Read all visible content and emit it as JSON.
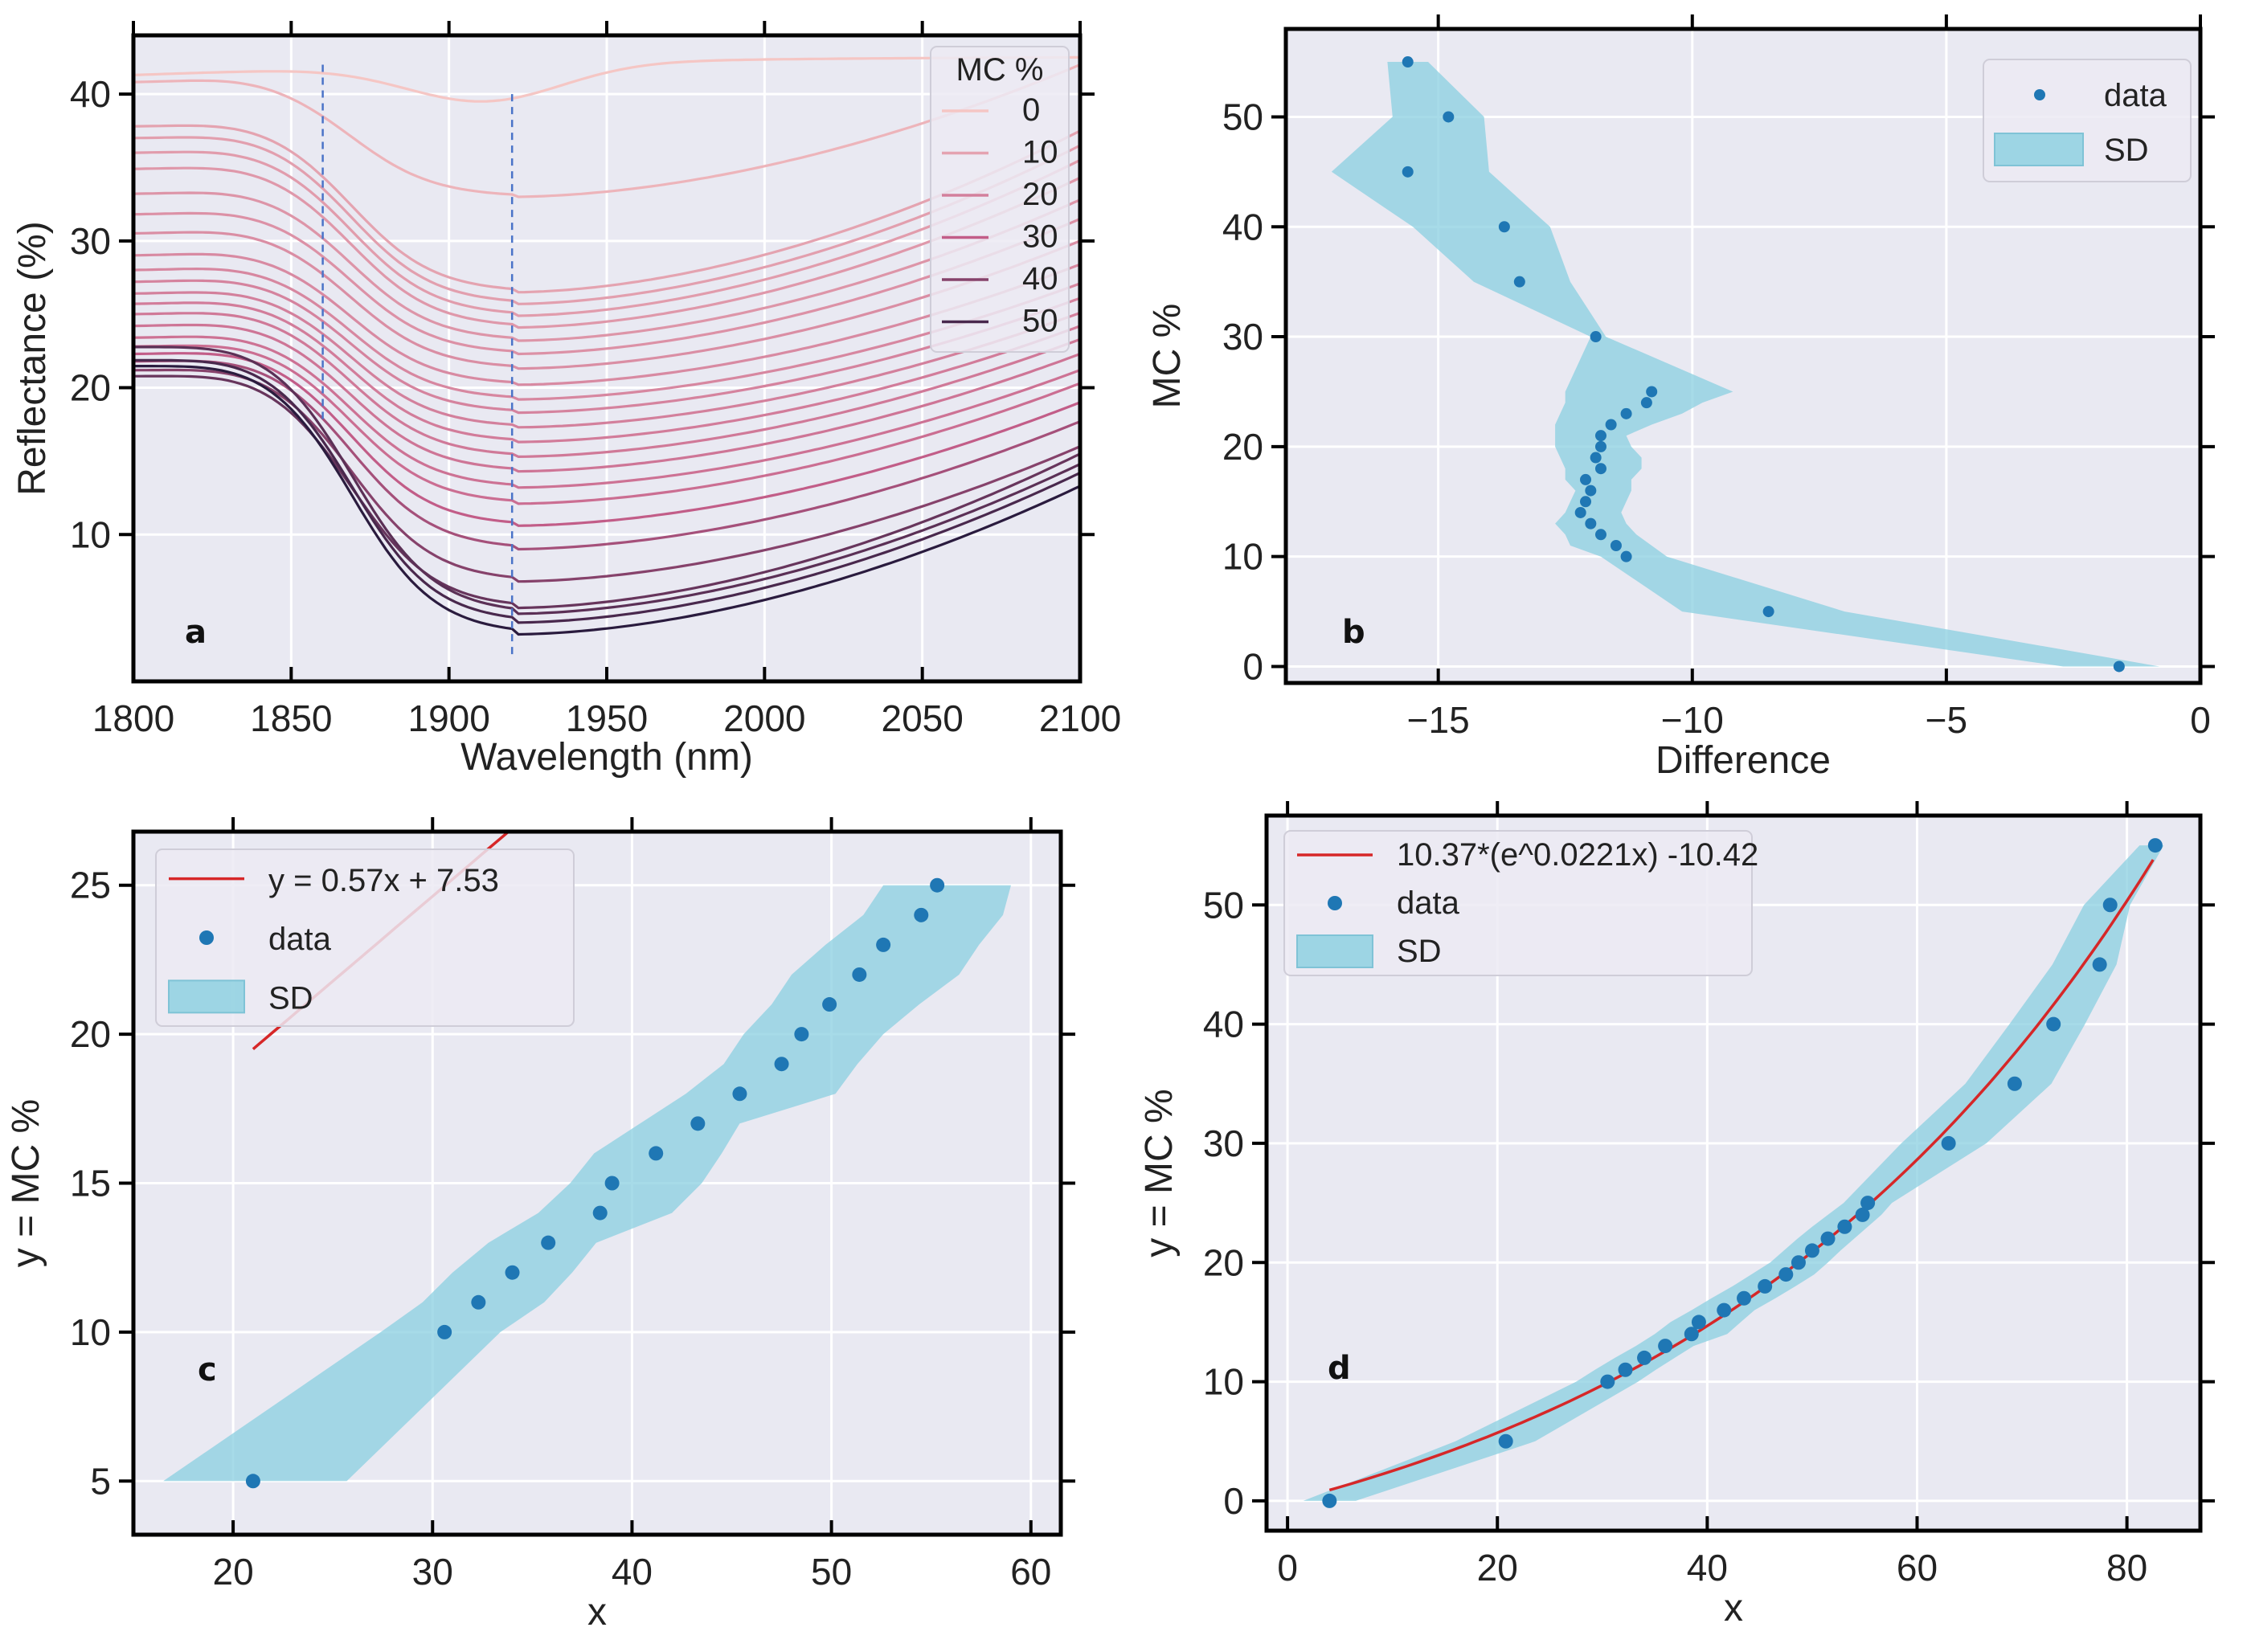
{
  "chart_data": [
    {
      "panel": "a",
      "type": "line",
      "xlabel": "Wavelength (nm)",
      "ylabel": "Reflectance (%)",
      "xlim": [
        1800,
        2100
      ],
      "ylim": [
        0,
        44
      ],
      "xticks": [
        1800,
        1850,
        1900,
        1950,
        2000,
        2050,
        2100
      ],
      "yticks": [
        10,
        20,
        30,
        40
      ],
      "grid": true,
      "legend": {
        "title": "MC %",
        "position": "top-right",
        "entries": [
          "0",
          "10",
          "20",
          "30",
          "40",
          "50"
        ]
      },
      "reference_lines_x": [
        1860,
        1920
      ],
      "colors": {
        "low_mc": "#f5c6c4",
        "high_mc": "#2a1b3e"
      },
      "series": [
        {
          "mc": 0,
          "r1800": 41.3,
          "r1920": 39.5,
          "r2100": 42.5
        },
        {
          "mc": 5,
          "r1800": 40.8,
          "r1920": 33.0,
          "r2100": 42.0
        },
        {
          "mc": 10,
          "r1800": 37.8,
          "r1920": 26.5,
          "r2100": 37.5
        },
        {
          "mc": 11,
          "r1800": 37.0,
          "r1920": 25.7,
          "r2100": 36.5
        },
        {
          "mc": 12,
          "r1800": 36.0,
          "r1920": 24.9,
          "r2100": 35.5
        },
        {
          "mc": 13,
          "r1800": 34.9,
          "r1920": 24.1,
          "r2100": 34.3
        },
        {
          "mc": 14,
          "r1800": 33.2,
          "r1920": 23.2,
          "r2100": 32.8
        },
        {
          "mc": 15,
          "r1800": 31.8,
          "r1920": 22.3,
          "r2100": 31.5
        },
        {
          "mc": 16,
          "r1800": 30.5,
          "r1920": 21.3,
          "r2100": 30.0
        },
        {
          "mc": 17,
          "r1800": 29.0,
          "r1920": 20.2,
          "r2100": 28.4
        },
        {
          "mc": 18,
          "r1800": 28.0,
          "r1920": 19.2,
          "r2100": 27.1
        },
        {
          "mc": 19,
          "r1800": 27.2,
          "r1920": 18.3,
          "r2100": 26.1
        },
        {
          "mc": 20,
          "r1800": 26.4,
          "r1920": 17.3,
          "r2100": 25.1
        },
        {
          "mc": 21,
          "r1800": 25.7,
          "r1920": 16.3,
          "r2100": 24.2
        },
        {
          "mc": 22,
          "r1800": 25.0,
          "r1920": 15.3,
          "r2100": 23.3
        },
        {
          "mc": 23,
          "r1800": 24.2,
          "r1920": 14.3,
          "r2100": 22.3
        },
        {
          "mc": 24,
          "r1800": 23.4,
          "r1920": 13.2,
          "r2100": 21.2
        },
        {
          "mc": 25,
          "r1800": 22.8,
          "r1920": 12.1,
          "r2100": 20.3
        },
        {
          "mc": 30,
          "r1800": 22.3,
          "r1920": 10.6,
          "r2100": 19.0
        },
        {
          "mc": 35,
          "r1800": 21.8,
          "r1920": 9.0,
          "r2100": 17.7
        },
        {
          "mc": 40,
          "r1800": 21.2,
          "r1920": 6.8,
          "r2100": 16.0
        },
        {
          "mc": 45,
          "r1800": 20.8,
          "r1920": 5.0,
          "r2100": 15.5
        },
        {
          "mc": 47,
          "r1800": 22.8,
          "r1920": 4.6,
          "r2100": 14.8
        },
        {
          "mc": 50,
          "r1800": 21.9,
          "r1920": 4.0,
          "r2100": 14.2
        },
        {
          "mc": 55,
          "r1800": 21.5,
          "r1920": 3.2,
          "r2100": 13.3
        }
      ]
    },
    {
      "panel": "b",
      "type": "scatter",
      "xlabel": "Difference",
      "ylabel": "MC %",
      "xlim": [
        -18,
        0
      ],
      "ylim": [
        -1.5,
        58
      ],
      "xticks": [
        -15,
        -10,
        -5,
        0
      ],
      "xtick_labels": [
        "−15",
        "−10",
        "−5",
        "0"
      ],
      "yticks": [
        0,
        10,
        20,
        30,
        40,
        50
      ],
      "grid": true,
      "legend": {
        "position": "top-right",
        "entries": [
          "data",
          "SD"
        ]
      },
      "colors": {
        "points": "#1f77b4",
        "band": "#89cfe0"
      },
      "points": [
        [
          -1.6,
          0
        ],
        [
          -8.5,
          5
        ],
        [
          -11.3,
          10
        ],
        [
          -11.5,
          11
        ],
        [
          -11.8,
          12
        ],
        [
          -12.0,
          13
        ],
        [
          -12.2,
          14
        ],
        [
          -12.1,
          15
        ],
        [
          -12.0,
          16
        ],
        [
          -12.1,
          17
        ],
        [
          -11.8,
          18
        ],
        [
          -11.9,
          19
        ],
        [
          -11.8,
          20
        ],
        [
          -11.8,
          21
        ],
        [
          -11.6,
          22
        ],
        [
          -11.3,
          23
        ],
        [
          -10.9,
          24
        ],
        [
          -10.8,
          25
        ],
        [
          -11.9,
          30
        ],
        [
          -13.4,
          35
        ],
        [
          -13.7,
          40
        ],
        [
          -15.6,
          45
        ],
        [
          -14.8,
          50
        ],
        [
          -15.6,
          55
        ]
      ],
      "band_lower": [
        -2.7,
        -10.2,
        -11.8,
        -12.4,
        -12.5,
        -12.7,
        -12.5,
        -12.4,
        -12.3,
        -12.5,
        -12.5,
        -12.6,
        -12.7,
        -12.7,
        -12.7,
        -12.6,
        -12.5,
        -12.5,
        -12.0,
        -14.3,
        -15.5,
        -17.1,
        -15.9,
        -16.0
      ],
      "band_upper": [
        -0.8,
        -7.0,
        -10.5,
        -10.8,
        -11.1,
        -11.3,
        -11.4,
        -11.3,
        -11.2,
        -11.2,
        -11.0,
        -11.0,
        -11.2,
        -11.3,
        -10.8,
        -10.2,
        -9.8,
        -9.2,
        -11.7,
        -12.4,
        -12.8,
        -14.0,
        -14.1,
        -15.2
      ]
    },
    {
      "panel": "c",
      "type": "scatter",
      "xlabel": "x",
      "ylabel": "y = MC %",
      "xlim": [
        15,
        61.5
      ],
      "ylim": [
        3.2,
        26.8
      ],
      "xticks": [
        20,
        30,
        40,
        50,
        60
      ],
      "yticks": [
        5,
        10,
        15,
        20,
        25
      ],
      "grid": true,
      "legend": {
        "position": "top-left",
        "entries": [
          "y = 0.57x +  7.53",
          "data",
          "SD"
        ]
      },
      "fit": {
        "formula": "y = 0.57x +  7.53",
        "slope": 0.57,
        "intercept": 7.53,
        "x_range": [
          21,
          55.3
        ]
      },
      "colors": {
        "points": "#1f77b4",
        "band": "#89cfe0",
        "fit": "#d62728"
      },
      "points": [
        [
          21.0,
          5
        ],
        [
          30.6,
          10
        ],
        [
          32.3,
          11
        ],
        [
          34.0,
          12
        ],
        [
          35.8,
          13
        ],
        [
          38.4,
          14
        ],
        [
          39.0,
          15
        ],
        [
          41.2,
          16
        ],
        [
          43.3,
          17
        ],
        [
          45.4,
          18
        ],
        [
          47.5,
          19
        ],
        [
          48.5,
          20
        ],
        [
          49.9,
          21
        ],
        [
          51.4,
          22
        ],
        [
          52.6,
          23
        ],
        [
          54.5,
          24
        ],
        [
          55.3,
          25
        ]
      ],
      "band_left": [
        16.5,
        27.4,
        29.5,
        31.0,
        32.8,
        35.3,
        36.9,
        38.1,
        40.4,
        42.7,
        44.6,
        45.6,
        47.0,
        48.0,
        49.7,
        51.6,
        52.6
      ],
      "band_right": [
        25.7,
        33.4,
        35.6,
        37.0,
        38.2,
        42.0,
        43.5,
        44.5,
        45.4,
        50.2,
        51.3,
        52.6,
        54.4,
        56.4,
        57.4,
        58.6,
        59.0
      ]
    },
    {
      "panel": "d",
      "type": "scatter",
      "xlabel": "x",
      "ylabel": "y = MC %",
      "xlim": [
        -2,
        87
      ],
      "ylim": [
        -2.5,
        57.5
      ],
      "xticks": [
        0,
        20,
        40,
        60,
        80
      ],
      "yticks": [
        0,
        10,
        20,
        30,
        40,
        50
      ],
      "grid": true,
      "legend": {
        "position": "top-left",
        "entries": [
          "10.37*(e^0.0221x) -10.42",
          "data",
          "SD"
        ]
      },
      "fit": {
        "formula": "10.37*(e^0.0221x) -10.42",
        "a": 10.37,
        "b": 0.0221,
        "c": -10.42,
        "x_range": [
          4,
          82.5
        ]
      },
      "colors": {
        "points": "#1f77b4",
        "band": "#89cfe0",
        "fit": "#d62728"
      },
      "points": [
        [
          4.0,
          0
        ],
        [
          20.8,
          5
        ],
        [
          30.5,
          10
        ],
        [
          32.2,
          11
        ],
        [
          34.0,
          12
        ],
        [
          36.0,
          13
        ],
        [
          38.5,
          14
        ],
        [
          39.2,
          15
        ],
        [
          41.6,
          16
        ],
        [
          43.5,
          17
        ],
        [
          45.5,
          18
        ],
        [
          47.5,
          19
        ],
        [
          48.7,
          20
        ],
        [
          50.0,
          21
        ],
        [
          51.5,
          22
        ],
        [
          53.1,
          23
        ],
        [
          54.8,
          24
        ],
        [
          55.3,
          25
        ],
        [
          63.0,
          30
        ],
        [
          69.3,
          35
        ],
        [
          73.0,
          40
        ],
        [
          77.4,
          45
        ],
        [
          78.4,
          50
        ],
        [
          82.7,
          55
        ]
      ],
      "band_left": [
        1.5,
        16.0,
        27.5,
        29.3,
        31.2,
        33.2,
        35.0,
        36.5,
        38.5,
        40.4,
        42.4,
        44.2,
        46.0,
        47.3,
        48.6,
        50.0,
        51.5,
        53.0,
        58.5,
        64.6,
        68.8,
        72.9,
        75.9,
        81.2
      ],
      "band_right": [
        6.5,
        23.6,
        33.4,
        35.1,
        36.9,
        38.7,
        41.9,
        43.2,
        44.5,
        46.5,
        48.4,
        50.2,
        51.5,
        52.7,
        54.0,
        55.3,
        56.6,
        57.6,
        66.6,
        72.8,
        76.0,
        79.0,
        80.3,
        83.5
      ]
    }
  ],
  "panel_labels": {
    "a": "a",
    "b": "b",
    "c": "c",
    "d": "d"
  }
}
